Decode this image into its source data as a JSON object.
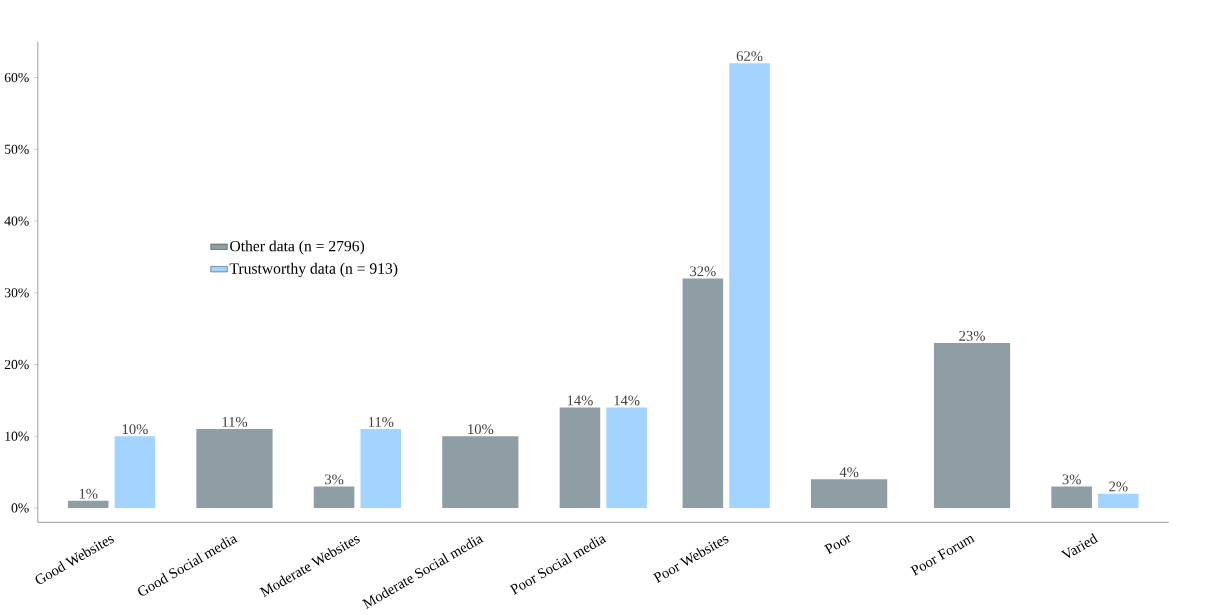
{
  "chart_data": {
    "type": "bar",
    "categories": [
      "Good Websites",
      "Good Social media",
      "Moderate Websites",
      "Moderate Social media",
      "Poor Social media",
      "Poor Websites",
      "Poor",
      "Poor Forum",
      "Varied"
    ],
    "series": [
      {
        "name": "Other data (n = 2796)",
        "color": "#8f9ea5",
        "values": [
          1,
          11,
          3,
          10,
          14,
          32,
          4,
          23,
          3
        ],
        "value_labels": [
          "1%",
          "11%",
          "3%",
          "10%",
          "14%",
          "32%",
          "4%",
          "23%",
          "3%"
        ]
      },
      {
        "name": "Trustworthy data (n = 913)",
        "color": "#a3d3ff",
        "values": [
          10,
          null,
          11,
          null,
          14,
          62,
          null,
          null,
          2
        ],
        "value_labels": [
          "10%",
          null,
          "11%",
          null,
          "14%",
          "62%",
          null,
          null,
          "2%"
        ]
      }
    ],
    "ylim": [
      -2,
      65
    ],
    "yticks": [
      {
        "value": 0,
        "label": "0%"
      },
      {
        "value": 10,
        "label": "10%"
      },
      {
        "value": 20,
        "label": "20%"
      },
      {
        "value": 30,
        "label": "30%"
      },
      {
        "value": 40,
        "label": "40%"
      },
      {
        "value": 50,
        "label": "50%"
      },
      {
        "value": 60,
        "label": "60%"
      }
    ],
    "legend": "left",
    "grid": false
  }
}
